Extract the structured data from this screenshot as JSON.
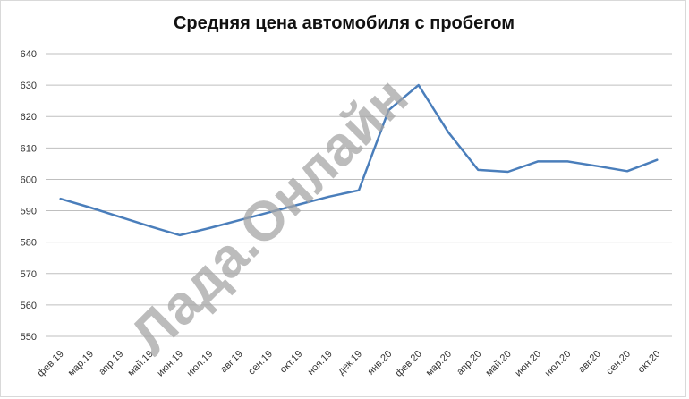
{
  "chart_data": {
    "type": "line",
    "title": "Средняя цена автомобиля с пробегом",
    "xlabel": "",
    "ylabel": "",
    "ylim": [
      545,
      640
    ],
    "yticks": [
      550,
      560,
      570,
      580,
      590,
      600,
      610,
      620,
      630,
      640
    ],
    "grid": true,
    "categories": [
      "фев.19",
      "мар.19",
      "апр.19",
      "май.19",
      "июн.19",
      "июл.19",
      "авг.19",
      "сен.19",
      "окт.19",
      "ноя.19",
      "дек.19",
      "янв.20",
      "фев.20",
      "мар.20",
      "апр.20",
      "май.20",
      "июн.20",
      "июл.20",
      "авг.20",
      "сен.20",
      "окт.20"
    ],
    "series": [
      {
        "values": [
          593.8,
          591.0,
          588.0,
          585.0,
          582.2,
          584.5,
          587.0,
          589.5,
          592.0,
          594.5,
          596.5,
          622.0,
          630.0,
          615.0,
          603.0,
          602.4,
          605.7,
          605.7,
          604.2,
          602.6,
          606.2
        ],
        "color": "#4a7ebb"
      }
    ],
    "watermark": "Лада.Онлайн"
  }
}
